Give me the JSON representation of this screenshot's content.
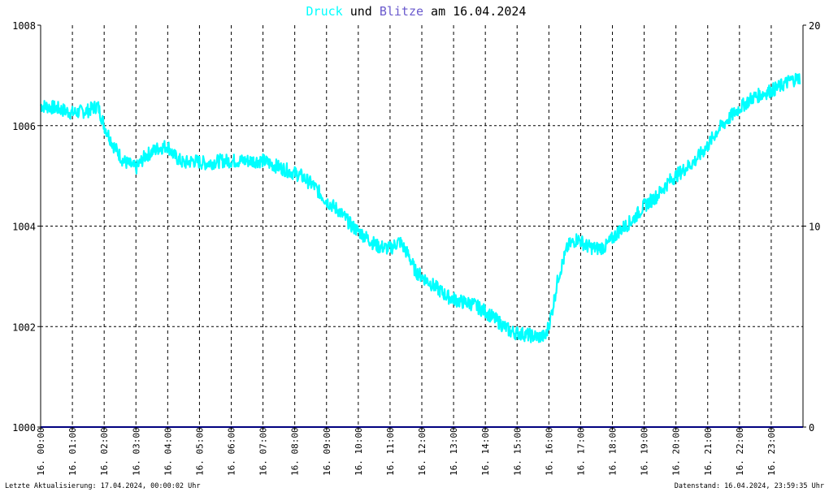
{
  "title": {
    "part1": "Druck",
    "part2": " und ",
    "part3": "Blitze",
    "part4": " am 16.04.2024"
  },
  "footer": {
    "left": "Letzte Aktualisierung: 17.04.2024, 00:00:02 Uhr",
    "right": "Datenstand: 16.04.2024, 23:59:35 Uhr"
  },
  "colors": {
    "druck": "#00ffff",
    "blitze": "#6a5acd",
    "baseline": "#000080",
    "grid": "#000000",
    "text": "#000000"
  },
  "chart_data": {
    "type": "line",
    "x_tick_labels": [
      "16. 00:00",
      "16. 01:00",
      "16. 02:00",
      "16. 03:00",
      "16. 04:00",
      "16. 05:00",
      "16. 06:00",
      "16. 07:00",
      "16. 08:00",
      "16. 09:00",
      "16. 10:00",
      "16. 11:00",
      "16. 12:00",
      "16. 13:00",
      "16. 14:00",
      "16. 15:00",
      "16. 16:00",
      "16. 17:00",
      "16. 18:00",
      "16. 19:00",
      "16. 20:00",
      "16. 21:00",
      "16. 22:00",
      "16. 23:00"
    ],
    "y_left_ticks": [
      "1000",
      "1002",
      "1004",
      "1006",
      "1008"
    ],
    "y_right_ticks": [
      "0",
      "10",
      "20"
    ],
    "ylim_left": [
      1000,
      1008
    ],
    "ylim_right": [
      0,
      20
    ],
    "xlim_hours": [
      0,
      24
    ],
    "grid": true,
    "series": [
      {
        "name": "Druck",
        "axis": "left",
        "x": [
          0,
          0.5,
          1,
          1.5,
          1.8,
          2,
          2.3,
          2.6,
          3,
          3.3,
          3.7,
          4,
          4.2,
          4.5,
          4.8,
          5.2,
          5.7,
          6,
          6.5,
          7,
          7.4,
          7.8,
          8.2,
          8.6,
          9,
          9.4,
          9.8,
          10.2,
          10.6,
          11,
          11.3,
          11.6,
          11.8,
          12,
          12.4,
          12.8,
          13.2,
          13.6,
          14,
          14.4,
          14.8,
          15.2,
          15.6,
          15.9,
          16.1,
          16.3,
          16.6,
          16.9,
          17.2,
          17.5,
          17.8,
          18.2,
          18.6,
          19,
          19.4,
          19.8,
          20.2,
          20.6,
          21,
          21.3,
          21.6,
          22,
          22.4,
          22.8,
          23.2,
          23.6,
          23.9
        ],
        "y": [
          1006.4,
          1006.35,
          1006.25,
          1006.3,
          1006.4,
          1006.0,
          1005.6,
          1005.3,
          1005.15,
          1005.4,
          1005.55,
          1005.6,
          1005.4,
          1005.25,
          1005.3,
          1005.25,
          1005.3,
          1005.3,
          1005.3,
          1005.3,
          1005.2,
          1005.1,
          1005.0,
          1004.8,
          1004.5,
          1004.3,
          1004.0,
          1003.8,
          1003.6,
          1003.55,
          1003.7,
          1003.4,
          1003.1,
          1003.0,
          1002.8,
          1002.6,
          1002.5,
          1002.45,
          1002.3,
          1002.1,
          1001.9,
          1001.85,
          1001.8,
          1001.8,
          1002.3,
          1003.0,
          1003.6,
          1003.75,
          1003.6,
          1003.55,
          1003.6,
          1003.9,
          1004.1,
          1004.4,
          1004.6,
          1004.9,
          1005.1,
          1005.3,
          1005.6,
          1005.9,
          1006.1,
          1006.35,
          1006.55,
          1006.65,
          1006.75,
          1006.9,
          1006.95
        ]
      },
      {
        "name": "Blitze",
        "axis": "right",
        "x": [
          0,
          24
        ],
        "y": [
          0,
          0
        ]
      }
    ]
  }
}
